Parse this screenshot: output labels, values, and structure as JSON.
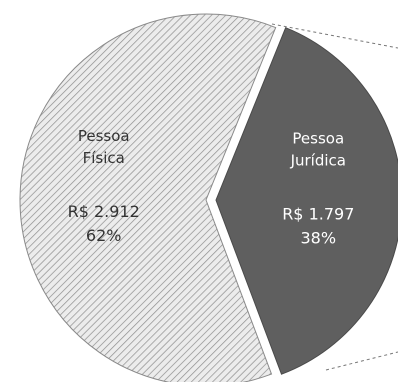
{
  "chart_data": {
    "type": "pie",
    "title": "",
    "slices": [
      {
        "label_line1": "Pessoa",
        "label_line2": "Física",
        "value": 2912,
        "value_label": "R$ 2.912",
        "percent_label": "62%",
        "percent": 62,
        "color": "#e6e6e6",
        "hatch_color": "#9a9a9a",
        "style": "hatched"
      },
      {
        "label_line1": "Pessoa",
        "label_line2": "Jurídica",
        "value": 1797,
        "value_label": "R$ 1.797",
        "percent_label": "38%",
        "percent": 38,
        "color": "#5f5f5f",
        "text_color": "#ffffff",
        "style": "solid",
        "exploded": true
      }
    ],
    "legend": "none"
  }
}
